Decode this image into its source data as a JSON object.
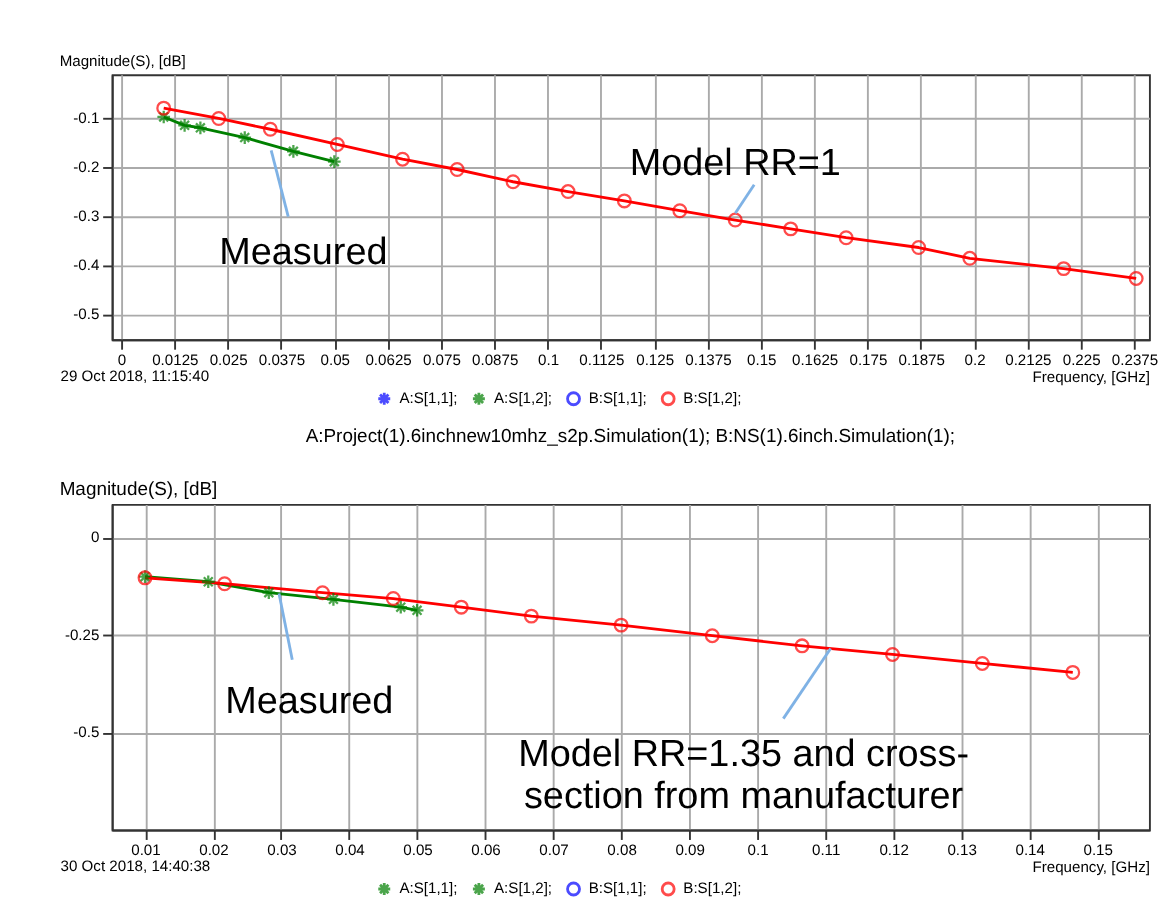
{
  "chart_data": [
    {
      "type": "line",
      "ylabel": "Magnitude(S), [dB]",
      "xlabel": "Frequency, [GHz]",
      "xlim": [
        -0.0022,
        0.241
      ],
      "ylim": [
        -0.55,
        -0.01
      ],
      "xticks": [
        0,
        0.0125,
        0.025,
        0.0375,
        0.05,
        0.0625,
        0.075,
        0.0875,
        0.1,
        0.1125,
        0.125,
        0.1375,
        0.15,
        0.1625,
        0.175,
        0.1875,
        0.2,
        0.2125,
        0.225,
        0.2375
      ],
      "yticks": [
        -0.1,
        -0.2,
        -0.3,
        -0.4,
        -0.5
      ],
      "grid": true,
      "legend": "bottom",
      "series": [
        {
          "name": "A:S[1,1];",
          "color": "#0000ff",
          "marker": "cross"
        },
        {
          "name": "A:S[1,2];",
          "color": "#008000",
          "marker": "cross",
          "x": [
            0.01,
            0.0149,
            0.0186,
            0.029,
            0.0404,
            0.05
          ],
          "values": [
            -0.097,
            -0.114,
            -0.119,
            -0.139,
            -0.167,
            -0.188
          ]
        },
        {
          "name": "B:S[1,1];",
          "color": "#0000ff",
          "marker": "circle"
        },
        {
          "name": "B:S[1,2];",
          "color": "#ff0000",
          "marker": "circle",
          "x": [
            0.01,
            0.0229,
            0.035,
            0.0507,
            0.066,
            0.0788,
            0.0919,
            0.1048,
            0.118,
            0.131,
            0.144,
            0.157,
            0.17,
            0.187,
            0.199,
            0.221,
            0.238
          ],
          "values": [
            -0.079,
            -0.1,
            -0.122,
            -0.153,
            -0.183,
            -0.204,
            -0.229,
            -0.249,
            -0.268,
            -0.288,
            -0.307,
            -0.325,
            -0.343,
            -0.363,
            -0.385,
            -0.406,
            -0.426
          ]
        }
      ],
      "annotations": [
        {
          "text": "Measured",
          "x": 0.0352,
          "y": -0.165
        },
        {
          "text": "Model RR=1",
          "x": 0.144,
          "y": -0.293
        },
        "29 Oct 2018, 11:15:40"
      ]
    },
    {
      "type": "line",
      "title": "A:Project(1).6inchnew10mhz_s2p.Simulation(1); B:NS(1).6inch.Simulation(1);",
      "ylabel": "Magnitude(S), [dB]",
      "xlabel": "Frequency, [GHz]",
      "xlim": [
        0.0051,
        0.1576
      ],
      "ylim": [
        -0.748,
        0.085
      ],
      "xticks": [
        0.01,
        0.02,
        0.03,
        0.04,
        0.05,
        0.06,
        0.07,
        0.08,
        0.09,
        0.1,
        0.11,
        0.12,
        0.13,
        0.14,
        0.15
      ],
      "yticks": [
        0,
        -0.25,
        -0.5
      ],
      "grid": true,
      "legend": "bottom",
      "series": [
        {
          "name": "A:S[1,1];",
          "color": "#008000",
          "marker": "cross"
        },
        {
          "name": "A:S[1,2];",
          "color": "#008000",
          "marker": "cross",
          "x": [
            0.01,
            0.0193,
            0.0282,
            0.0377,
            0.0476,
            0.05
          ],
          "values": [
            -0.101,
            -0.114,
            -0.142,
            -0.159,
            -0.179,
            -0.187
          ]
        },
        {
          "name": "B:S[1,1];",
          "color": "#0000ff",
          "marker": "circle"
        },
        {
          "name": "B:S[1,2];",
          "color": "#ff0000",
          "marker": "circle",
          "x": [
            0.01,
            0.0217,
            0.0361,
            0.0465,
            0.0565,
            0.0668,
            0.08,
            0.0934,
            0.1066,
            0.1199,
            0.1331,
            0.1464
          ],
          "values": [
            -0.104,
            -0.119,
            -0.142,
            -0.157,
            -0.179,
            -0.202,
            -0.225,
            -0.252,
            -0.278,
            -0.3,
            -0.323,
            -0.346
          ]
        }
      ],
      "annotations": [
        {
          "text": "Measured",
          "x": 0.0297,
          "y": -0.144
        },
        {
          "text": "Model RR=1.35 and cross-\nsection from manufacturer",
          "x": 0.1108,
          "y": -0.285
        },
        "30 Oct 2018, 14:40:38"
      ]
    }
  ]
}
